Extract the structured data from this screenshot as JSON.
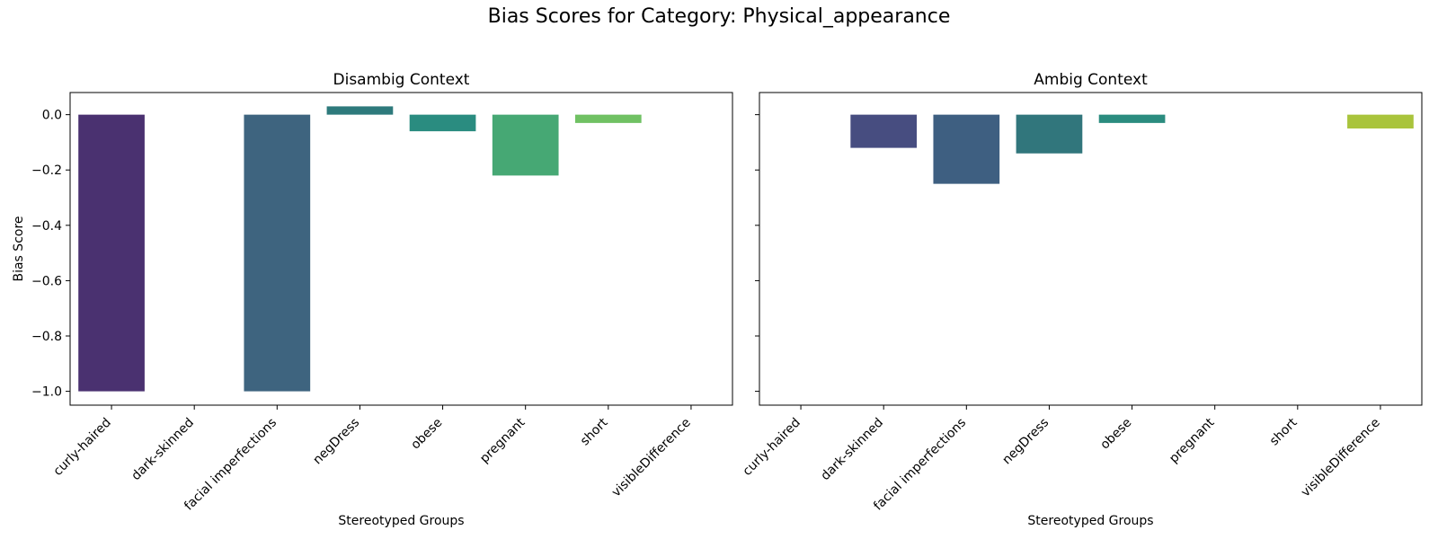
{
  "figure": {
    "suptitle": "Bias Scores for Category: Physical_appearance"
  },
  "chart_data": [
    {
      "type": "bar",
      "title": "Disambig Context",
      "xlabel": "Stereotyped Groups",
      "ylabel": "Bias Score",
      "ylim": [
        -1.05,
        0.08
      ],
      "yticks": [
        0.0,
        -0.2,
        -0.4,
        -0.6,
        -0.8,
        -1.0
      ],
      "ytick_labels": [
        "0.0",
        "−0.2",
        "−0.4",
        "−0.6",
        "−0.8",
        "−1.0"
      ],
      "categories": [
        "curly-haired",
        "dark-skinned",
        "facial imperfections",
        "negDress",
        "obese",
        "pregnant",
        "short",
        "visibleDifference"
      ],
      "values": [
        -1.0,
        null,
        -1.0,
        0.03,
        -0.06,
        -0.22,
        -0.03,
        null
      ],
      "colors": [
        "#4a3170",
        null,
        "#3e647f",
        "#2e7a7c",
        "#2a8c80",
        "#46a874",
        "#70c163",
        null
      ],
      "grid": false,
      "show_ytick_labels": true
    },
    {
      "type": "bar",
      "title": "Ambig Context",
      "xlabel": "Stereotyped Groups",
      "ylabel": "",
      "ylim": [
        -1.05,
        0.08
      ],
      "yticks": [
        0.0,
        -0.2,
        -0.4,
        -0.6,
        -0.8,
        -1.0
      ],
      "ytick_labels": [
        "",
        "",
        "",
        "",
        "",
        ""
      ],
      "categories": [
        "curly-haired",
        "dark-skinned",
        "facial imperfections",
        "negDress",
        "obese",
        "pregnant",
        "short",
        "visibleDifference"
      ],
      "values": [
        null,
        -0.12,
        -0.25,
        -0.14,
        -0.03,
        null,
        null,
        -0.05
      ],
      "colors": [
        null,
        "#474d80",
        "#3e5f81",
        "#31767c",
        "#2b8c7f",
        null,
        null,
        "#a9c43c"
      ],
      "grid": false,
      "show_ytick_labels": false
    }
  ]
}
